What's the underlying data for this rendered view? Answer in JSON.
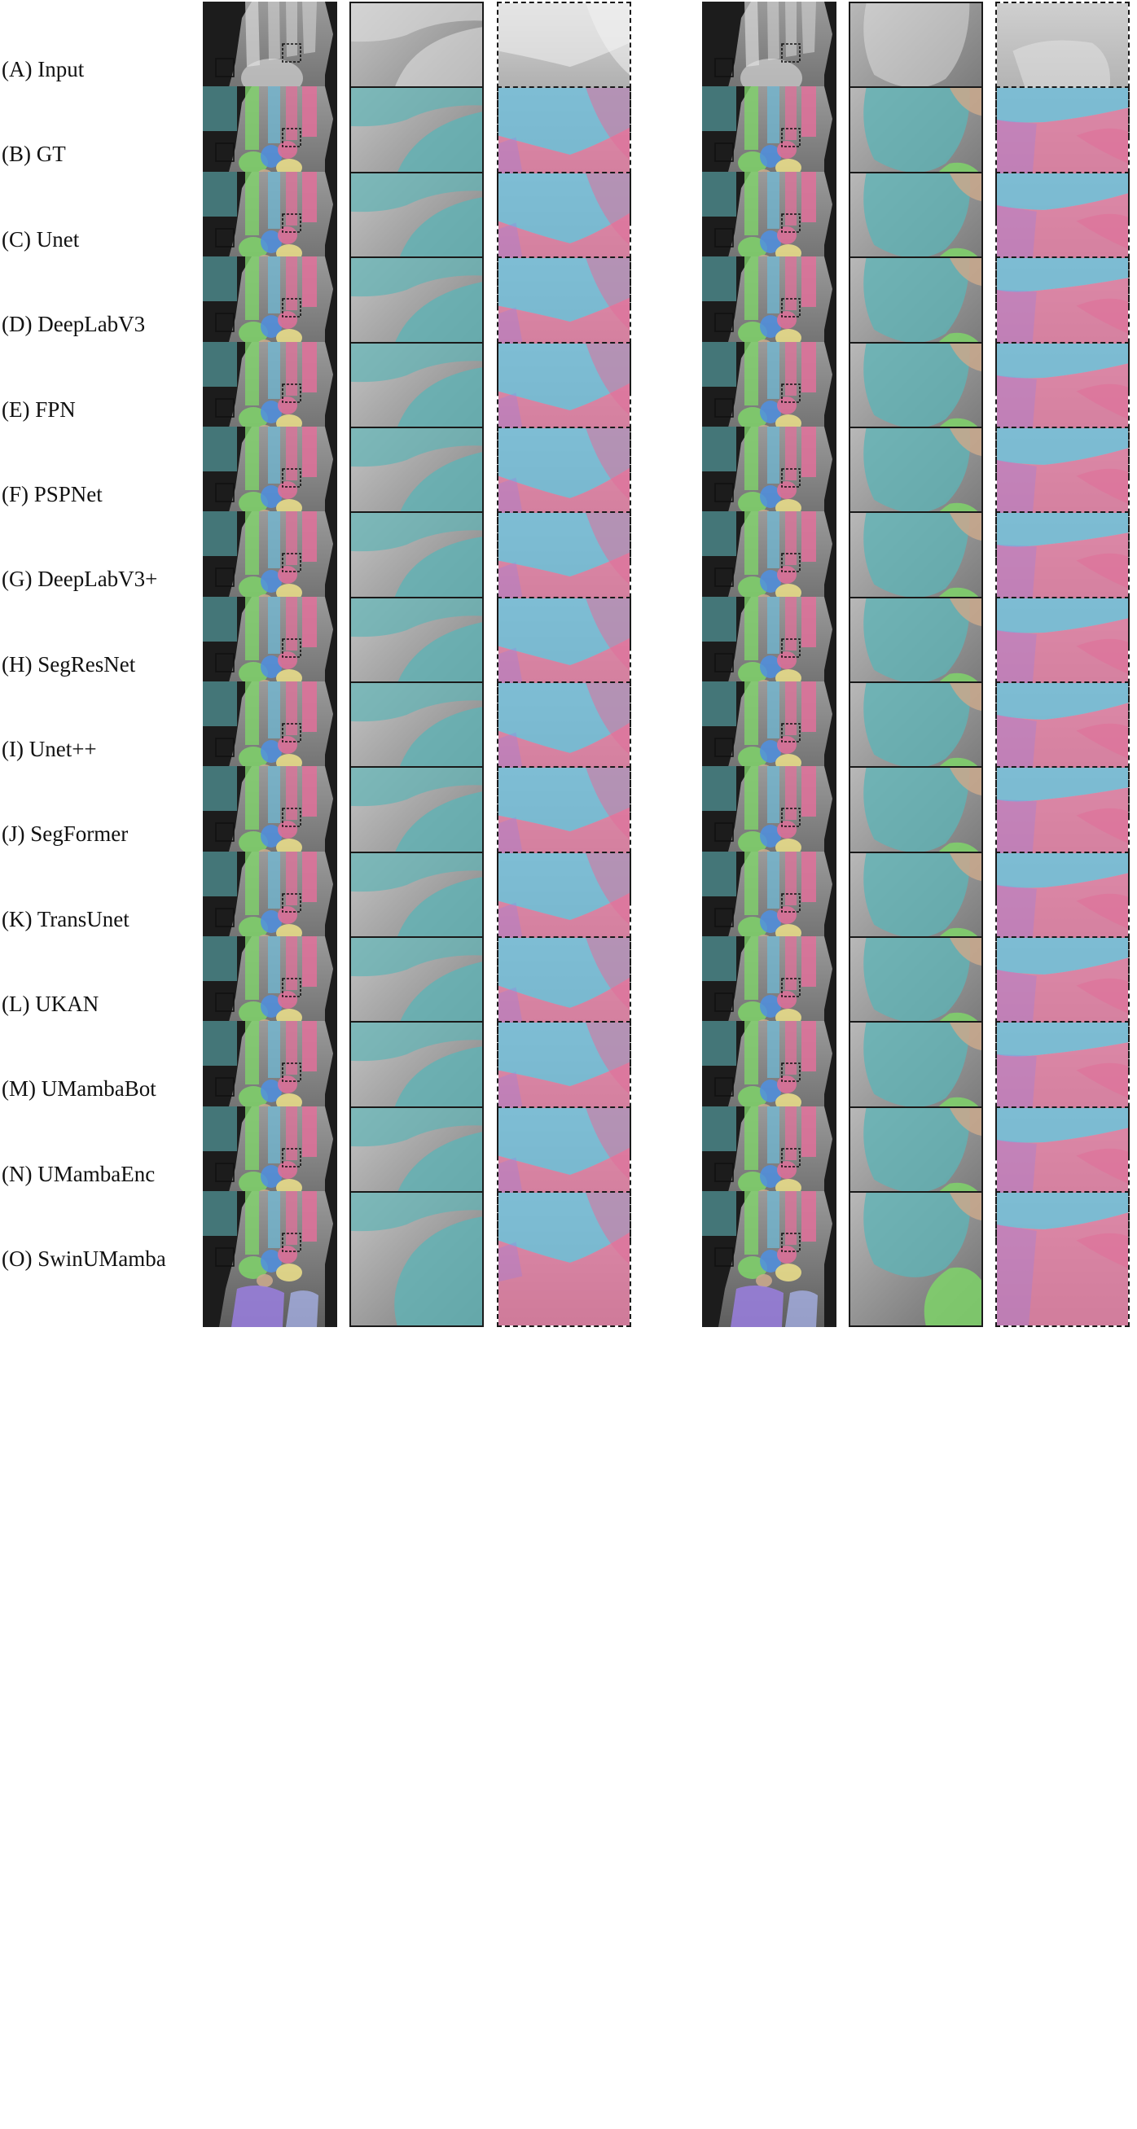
{
  "figure": {
    "rows": [
      {
        "label": "(A) Input",
        "type": "input"
      },
      {
        "label": "(B) GT",
        "type": "seg"
      },
      {
        "label": "(C) Unet",
        "type": "seg"
      },
      {
        "label": "(D) DeepLabV3",
        "type": "seg"
      },
      {
        "label": "(E) FPN",
        "type": "seg"
      },
      {
        "label": "(F) PSPNet",
        "type": "seg"
      },
      {
        "label": "(G) DeepLabV3+",
        "type": "seg"
      },
      {
        "label": "(H) SegResNet",
        "type": "seg"
      },
      {
        "label": "(I) Unet++",
        "type": "seg"
      },
      {
        "label": "(J) SegFormer",
        "type": "seg"
      },
      {
        "label": "(K) TransUnet",
        "type": "seg"
      },
      {
        "label": "(L) UKAN",
        "type": "seg"
      },
      {
        "label": "(M) UMambaBot",
        "type": "seg"
      },
      {
        "label": "(N) UMambaEnc",
        "type": "seg"
      },
      {
        "label": "(O) SwinUMamba",
        "type": "seg"
      }
    ],
    "palette": {
      "teal": "#5fb3b5",
      "blue": "#6fb8d4",
      "pink": "#e0709a",
      "green": "#7fd36a",
      "purple": "#9a7fe0",
      "yellow": "#e8dc8a",
      "tan": "#c9a88c",
      "periwinkle": "#a9b4ec",
      "bright_blue": "#4f8fe0"
    }
  }
}
